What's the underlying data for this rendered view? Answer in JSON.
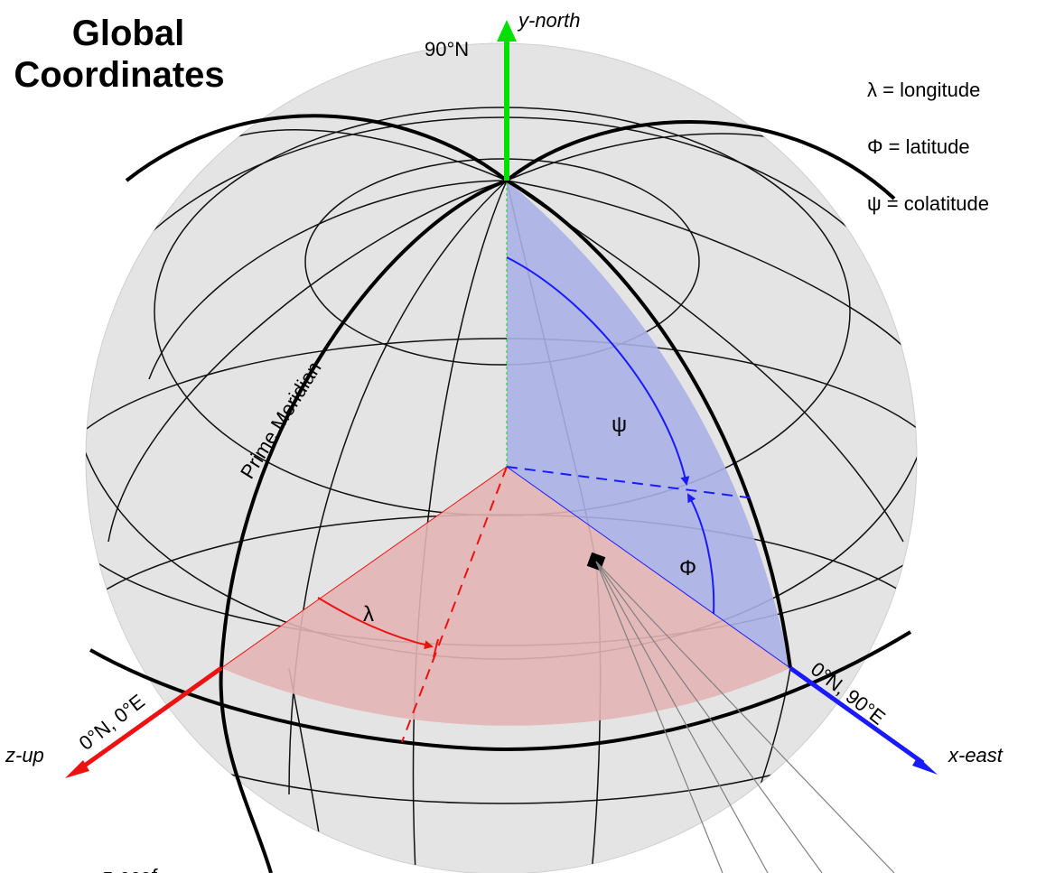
{
  "title": {
    "line1": "Global",
    "line2": "Coordinates"
  },
  "legend": {
    "longitude": "λ = longitude",
    "latitude": "Φ = latitude",
    "colatitude": "ψ = colatitude"
  },
  "labels": {
    "north_pole": "90°N",
    "y_axis": "y-north",
    "x_axis": "x-east",
    "z_axis": "z-up",
    "z_coord": "0°N, 0°E",
    "x_coord": "0°N, 90°E",
    "prime_meridian": "Prime Meridian",
    "psi_symbol": "ψ",
    "phi_symbol": "Φ",
    "lambda_symbol": "λ",
    "bottom_label": "z-ecef"
  },
  "colors": {
    "y_axis": "#00e000",
    "x_axis": "#1a1aff",
    "z_axis": "#ee1111",
    "blue_fill": "#aab0e4",
    "red_fill": "#e2b4b4",
    "sphere": "#e4e4e4"
  }
}
